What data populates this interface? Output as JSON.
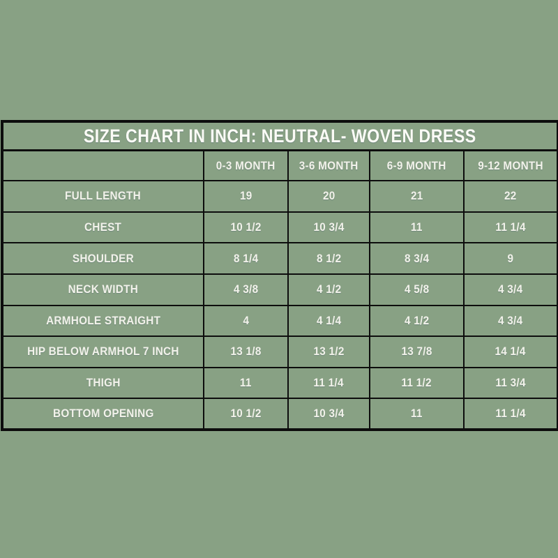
{
  "page": {
    "background_color": "#88a184"
  },
  "chart_data": {
    "type": "table",
    "title": "SIZE CHART IN INCH: NEUTRAL- WOVEN DRESS",
    "columns": [
      "0-3 MONTH",
      "3-6 MONTH",
      "6-9 MONTH",
      "9-12 MONTH"
    ],
    "rows": [
      {
        "label": "FULL LENGTH",
        "values": [
          "19",
          "20",
          "21",
          "22"
        ]
      },
      {
        "label": "CHEST",
        "values": [
          "10 1/2",
          "10 3/4",
          "11",
          "11 1/4"
        ]
      },
      {
        "label": "SHOULDER",
        "values": [
          "8 1/4",
          "8 1/2",
          "8 3/4",
          "9"
        ]
      },
      {
        "label": "NECK WIDTH",
        "values": [
          "4 3/8",
          "4 1/2",
          "4 5/8",
          "4 3/4"
        ]
      },
      {
        "label": "ARMHOLE STRAIGHT",
        "values": [
          "4",
          "4 1/4",
          "4 1/2",
          "4 3/4"
        ]
      },
      {
        "label": "HIP BELOW ARMHOL 7 INCH",
        "values": [
          "13 1/8",
          "13 1/2",
          "13 7/8",
          "14 1/4"
        ]
      },
      {
        "label": "THIGH",
        "values": [
          "11",
          "11 1/4",
          "11 1/2",
          "11 3/4"
        ]
      },
      {
        "label": "BOTTOM OPENING",
        "values": [
          "10 1/2",
          "10 3/4",
          "11",
          "11 1/4"
        ]
      }
    ],
    "layout": {
      "legend": "none",
      "grid": true,
      "title_row_merged": true
    },
    "colors": {
      "background": "#88a184",
      "border": "#0d0d0d",
      "text": "#f2f2ea",
      "title_text": "#fbfbf6"
    }
  }
}
